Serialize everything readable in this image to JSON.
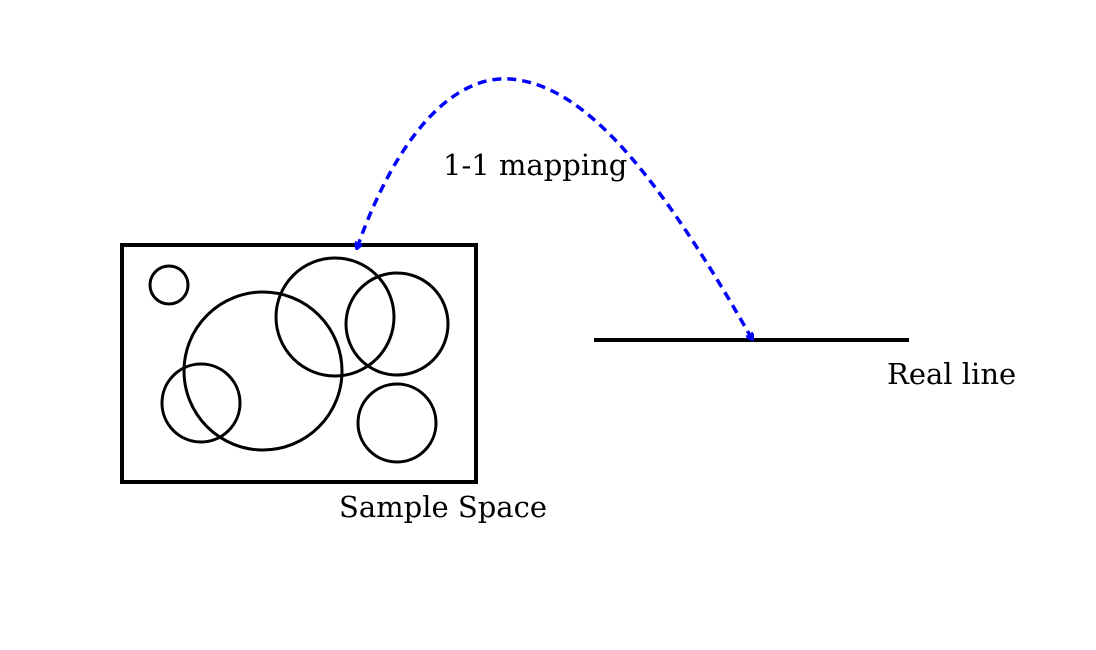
{
  "labels": {
    "mapping": "1-1 mapping",
    "real_line": "Real line",
    "sample_space": "Sample Space"
  },
  "colors": {
    "arrow": "#0000ff",
    "ink": "#000000",
    "background": "#ffffff"
  },
  "sample_space": {
    "event_count": 6
  }
}
